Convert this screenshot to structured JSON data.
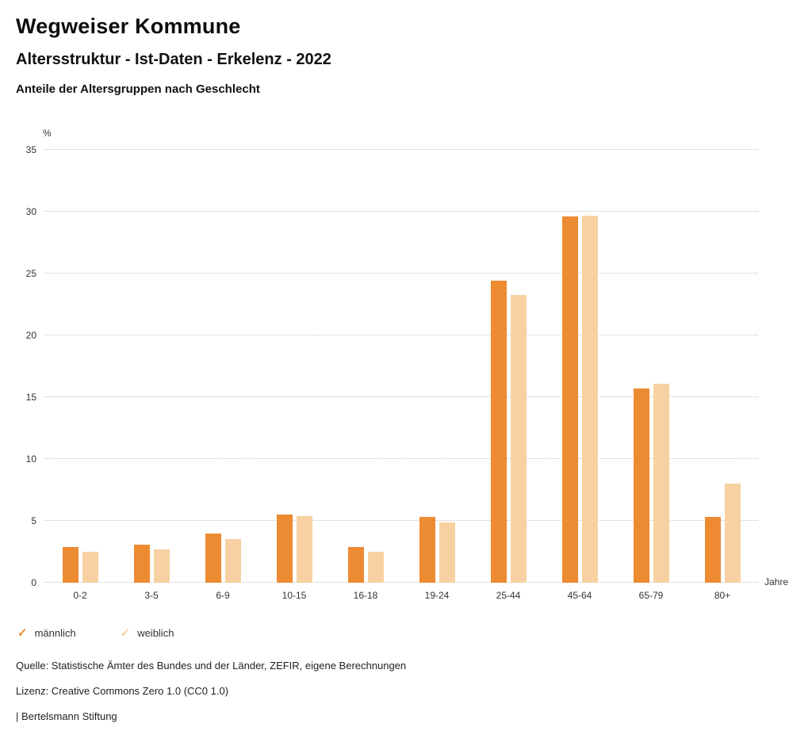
{
  "header": {
    "title": "Wegweiser Kommune",
    "subtitle": "Altersstruktur - Ist-Daten - Erkelenz - 2022",
    "chart_heading": "Anteile der Altersgruppen nach Geschlecht"
  },
  "chart_data": {
    "type": "bar",
    "categories": [
      "0-2",
      "3-5",
      "6-9",
      "10-15",
      "16-18",
      "19-24",
      "25-44",
      "45-64",
      "65-79",
      "80+"
    ],
    "series": [
      {
        "name": "männlich",
        "color": "#ED8B33",
        "values": [
          2.9,
          3.1,
          4.0,
          5.5,
          2.9,
          5.3,
          24.4,
          29.6,
          15.7,
          5.3
        ]
      },
      {
        "name": "weiblich",
        "color": "#F7D1A1",
        "values": [
          2.5,
          2.7,
          3.5,
          5.4,
          2.5,
          4.9,
          23.3,
          29.7,
          16.1,
          8.0
        ]
      }
    ],
    "ylabel": "%",
    "xlabel": "Jahre",
    "ylim": [
      0,
      35
    ],
    "ytick_step": 5,
    "grid": true,
    "legend_position": "bottom-left",
    "legend_marker": "✓"
  },
  "footer": {
    "source": "Quelle: Statistische Ämter des Bundes und der Länder, ZEFIR, eigene Berechnungen",
    "license": "Lizenz: Creative Commons Zero 1.0 (CC0 1.0)",
    "attribution": "| Bertelsmann Stiftung"
  }
}
